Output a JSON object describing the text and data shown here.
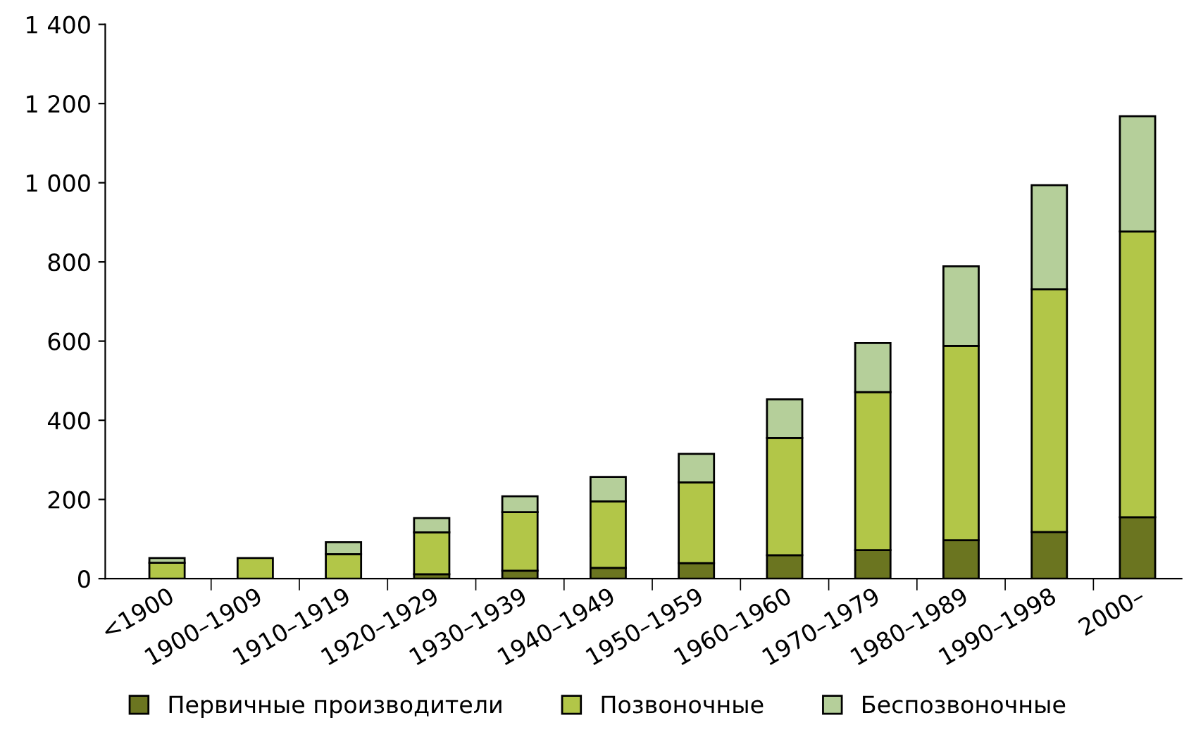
{
  "chart_data": {
    "type": "bar",
    "stacked": true,
    "categories": [
      "<1900",
      "1900–1909",
      "1910–1919",
      "1920–1929",
      "1930–1939",
      "1940–1949",
      "1950–1959",
      "1960–1960",
      "1970–1979",
      "1980–1989",
      "1990–1998",
      "2000–"
    ],
    "series": [
      {
        "name": "Первичные производители",
        "color": "#6b7520",
        "values": [
          null,
          null,
          null,
          11,
          20,
          27,
          39,
          59,
          72,
          97,
          118,
          155
        ]
      },
      {
        "name": "Позвоночные",
        "color": "#b2c648",
        "values": [
          40,
          52,
          62,
          106,
          148,
          168,
          204,
          296,
          399,
          491,
          613,
          722
        ]
      },
      {
        "name": "Беспозвоночные",
        "color": "#b5cf9a",
        "values": [
          12,
          null,
          30,
          36,
          40,
          62,
          72,
          98,
          124,
          201,
          263,
          291
        ]
      }
    ],
    "ylim": [
      0,
      1400
    ],
    "yticks": [
      0,
      200,
      400,
      600,
      800,
      {
        "value": 1000,
        "label": "1 000"
      },
      {
        "value": 1200,
        "label": "1 200"
      },
      {
        "value": 1400,
        "label": "1 400"
      }
    ],
    "grid": false,
    "legend": "bottom"
  }
}
